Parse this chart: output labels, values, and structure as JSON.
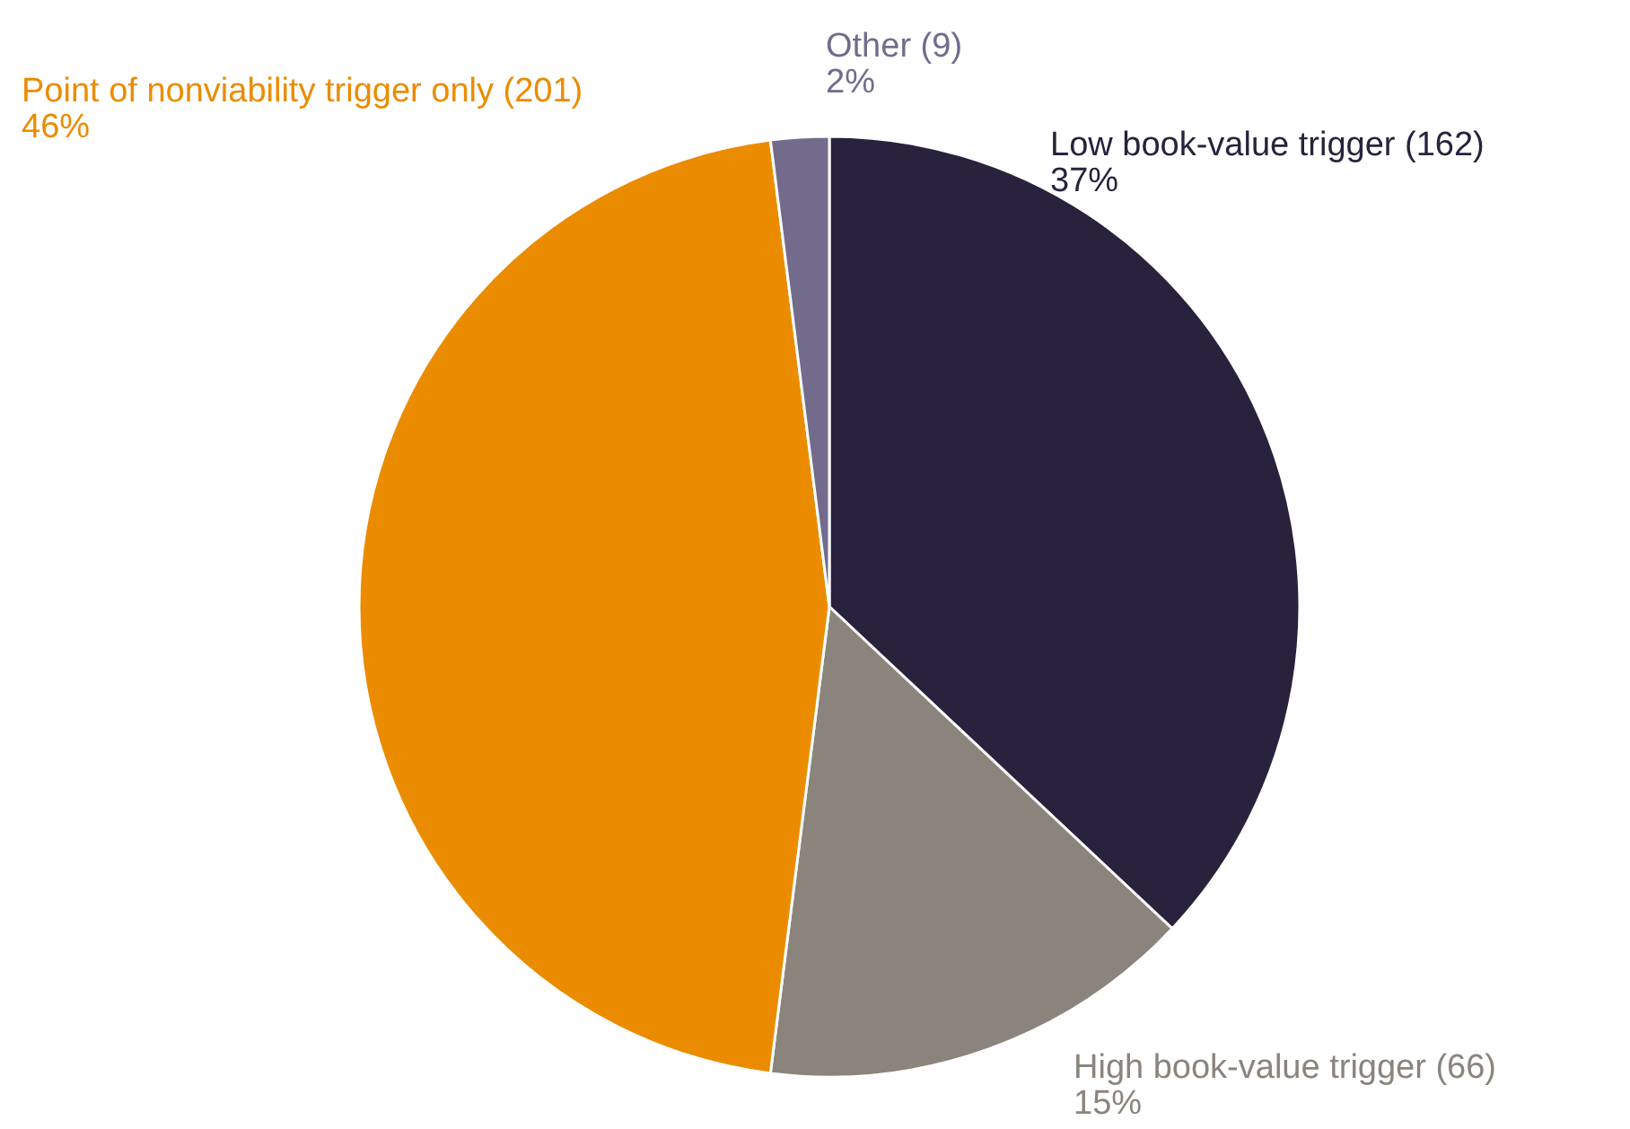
{
  "chart_data": {
    "type": "pie",
    "categories": [
      "Low book-value trigger (162)",
      "High book-value trigger (66)",
      "Point of nonviability trigger only (201)",
      "Other (9)"
    ],
    "values": [
      37,
      15,
      46,
      2
    ],
    "value_labels": [
      "37%",
      "15%",
      "46%",
      "2%"
    ],
    "colors": [
      "#28223c",
      "#8b847c",
      "#eb8c00",
      "#736b8c"
    ],
    "legend": false
  }
}
